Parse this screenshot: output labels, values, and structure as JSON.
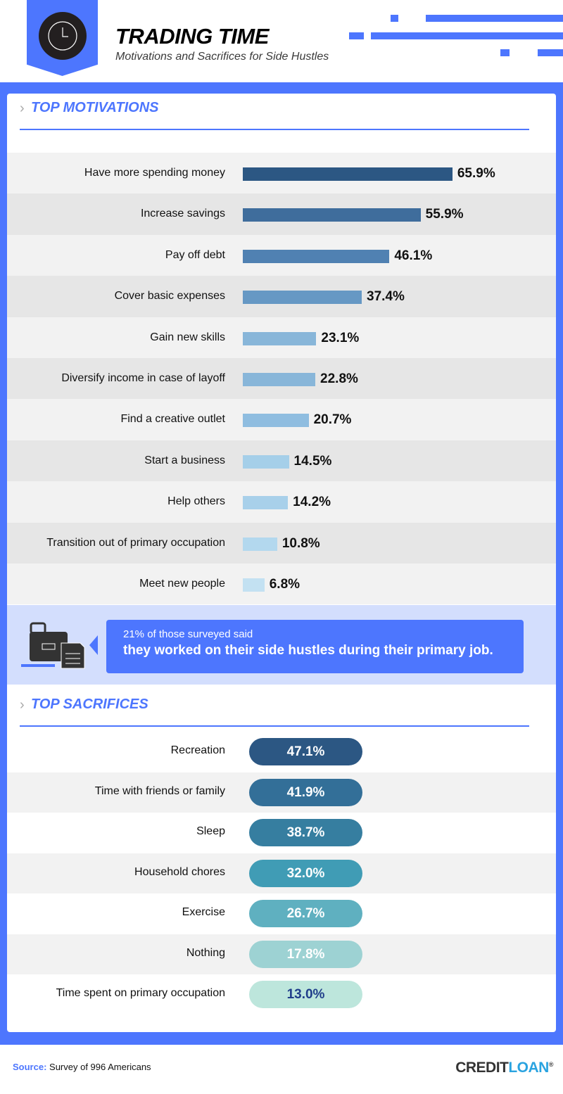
{
  "header": {
    "title": "TRADING TIME",
    "subtitle": "Motivations and Sacrifices for Side Hustles",
    "icon": "clock-icon"
  },
  "chart_data": [
    {
      "type": "bar",
      "title": "TOP MOTIVATIONS",
      "orientation": "horizontal",
      "unit": "%",
      "categories": [
        "Have more spending money",
        "Increase savings",
        "Pay off debt",
        "Cover basic expenses",
        "Gain new skills",
        "Diversify income in case of layoff",
        "Find a creative outlet",
        "Start a business",
        "Help others",
        "Transition out of primary occupation",
        "Meet new people"
      ],
      "values": [
        65.9,
        55.9,
        46.1,
        37.4,
        23.1,
        22.8,
        20.7,
        14.5,
        14.2,
        10.8,
        6.8
      ],
      "labels": [
        "65.9%",
        "55.9%",
        "46.1%",
        "37.4%",
        "23.1%",
        "22.8%",
        "20.7%",
        "14.5%",
        "14.2%",
        "10.8%",
        "6.8%"
      ],
      "colors": [
        "#2c5783",
        "#3f6d9c",
        "#5081b2",
        "#6698c4",
        "#88b6d9",
        "#88b6d9",
        "#8fbde0",
        "#a5cfe9",
        "#a8d0ea",
        "#b3d8ee",
        "#c3e1f2"
      ]
    },
    {
      "type": "table",
      "title": "TOP SACRIFICES",
      "unit": "%",
      "categories": [
        "Recreation",
        "Time with friends or family",
        "Sleep",
        "Household chores",
        "Exercise",
        "Nothing",
        "Time spent on primary occupation"
      ],
      "values": [
        47.1,
        41.9,
        38.7,
        32.0,
        26.7,
        17.8,
        13.0
      ],
      "labels": [
        "47.1%",
        "41.9%",
        "38.7%",
        "32.0%",
        "26.7%",
        "17.8%",
        "13.0%"
      ],
      "colors": [
        "#2c5783",
        "#336f98",
        "#367ea0",
        "#409cb5",
        "#5fb0c0",
        "#9dd2d3",
        "#bde6dc"
      ],
      "text_colors": [
        "#ffffff",
        "#ffffff",
        "#ffffff",
        "#ffffff",
        "#ffffff",
        "#ffffff",
        "#1f3d8a"
      ]
    }
  ],
  "callout": {
    "line1": "21% of those surveyed said",
    "line2": "they worked on their side hustles during their primary job.",
    "icon": "briefcase-icon"
  },
  "footer": {
    "source_label": "Source:",
    "source_text": "Survey of 996 Americans",
    "logo_a": "CREDIT",
    "logo_b": "LOAN",
    "logo_mark": "®"
  },
  "colors": {
    "accent": "#4d76fe",
    "callout_bg": "#d3defd"
  }
}
